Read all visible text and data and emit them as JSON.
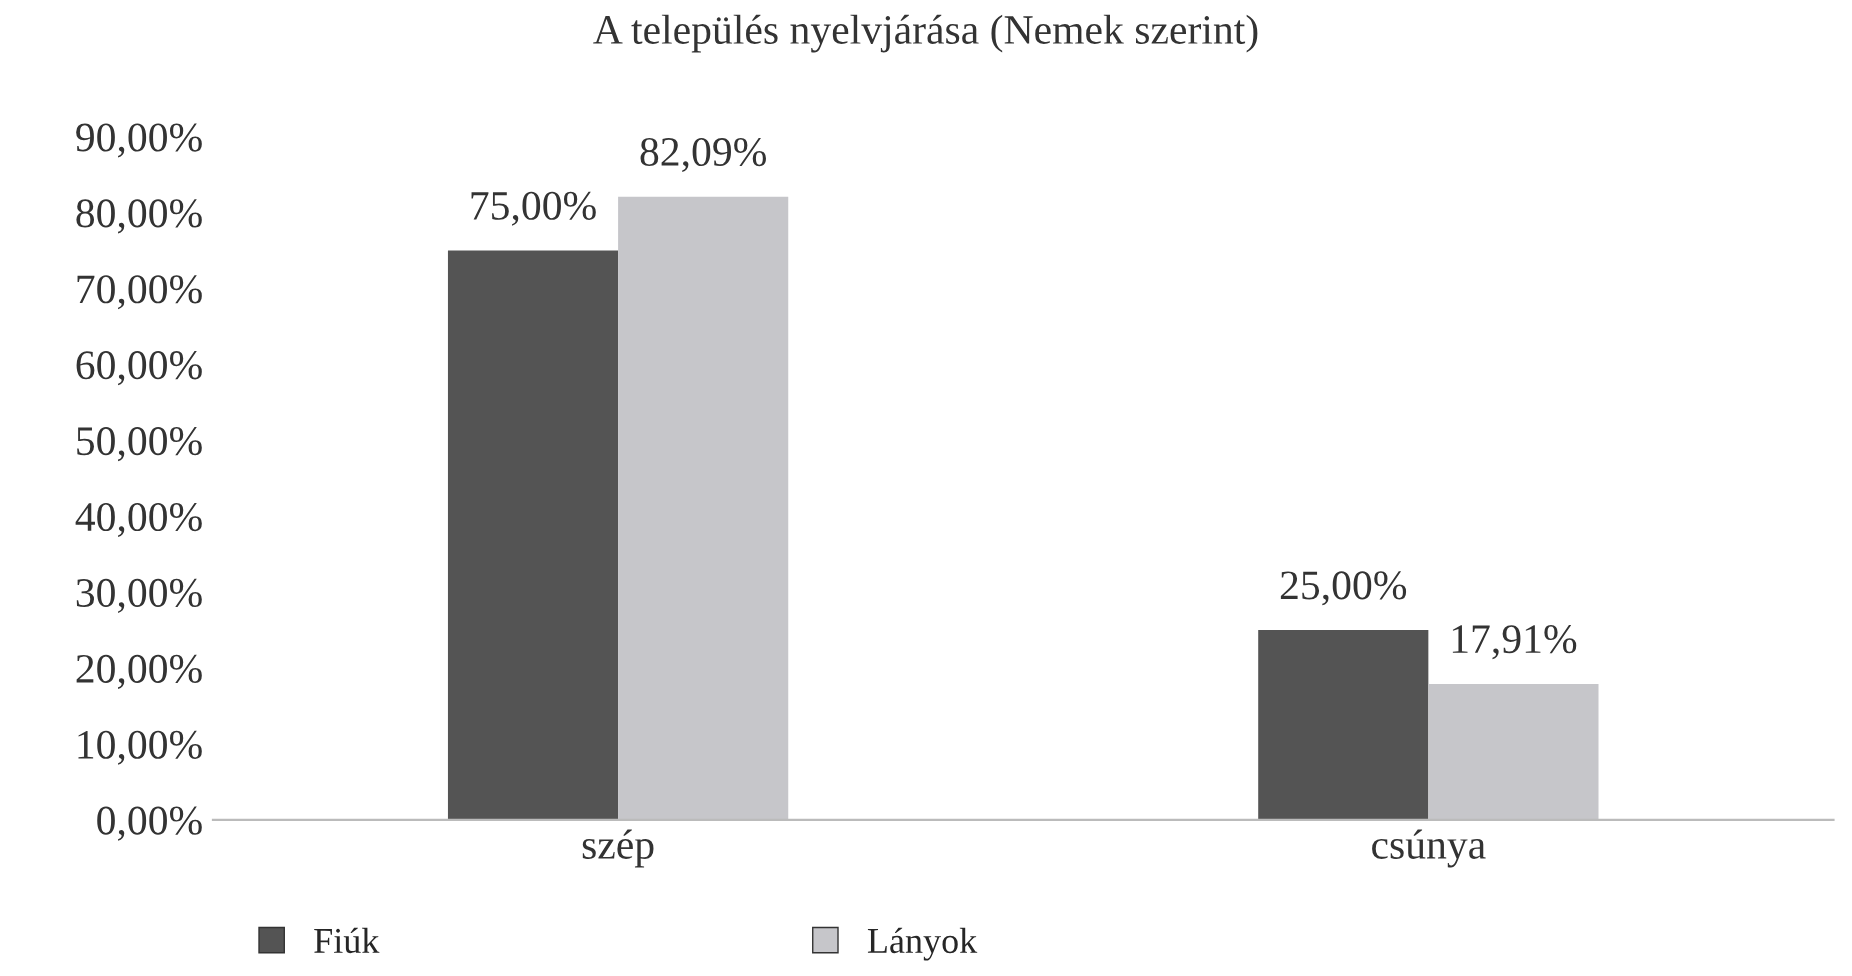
{
  "chart_data": {
    "type": "bar",
    "title": "A település nyelvjárása (Nemek szerint)",
    "categories": [
      "szép",
      "csúnya"
    ],
    "series": [
      {
        "name": "Fiúk",
        "color": "#545454",
        "values": [
          75.0,
          25.0
        ],
        "value_labels": [
          "75,00%",
          "25,00%"
        ]
      },
      {
        "name": "Lányok",
        "color": "#c6c6ca",
        "values": [
          82.09,
          17.91
        ],
        "value_labels": [
          "82,09%",
          "17,91%"
        ]
      }
    ],
    "ylim": [
      0,
      90
    ],
    "yticks": [
      {
        "value": 0,
        "label": "0,00%"
      },
      {
        "value": 10,
        "label": "10,00%"
      },
      {
        "value": 20,
        "label": "20,00%"
      },
      {
        "value": 30,
        "label": "30,00%"
      },
      {
        "value": 40,
        "label": "40,00%"
      },
      {
        "value": 50,
        "label": "50,00%"
      },
      {
        "value": 60,
        "label": "60,00%"
      },
      {
        "value": 70,
        "label": "70,00%"
      },
      {
        "value": 80,
        "label": "80,00%"
      },
      {
        "value": 90,
        "label": "90,00%"
      }
    ],
    "grid": false,
    "legend": "bottom"
  }
}
